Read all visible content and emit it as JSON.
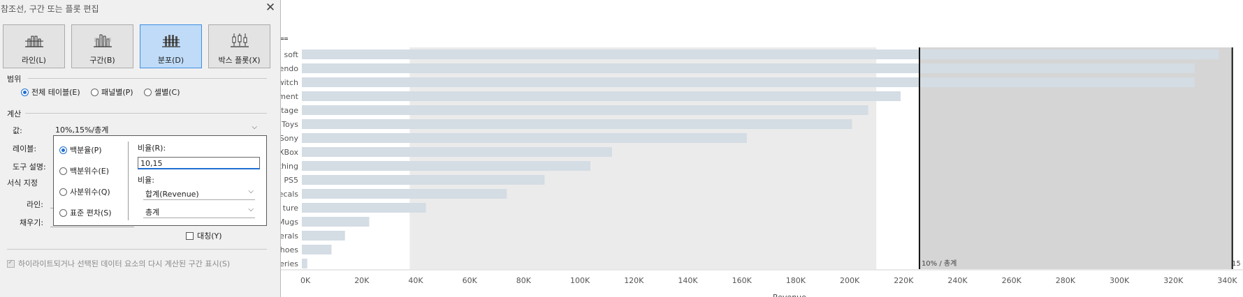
{
  "colors": {
    "bar": "#d4dce4",
    "band_light": "#ebebeb",
    "band_dark": "#d5d5d5",
    "dialog_bg": "#f0f0f0",
    "accent": "#1f6fd1"
  },
  "dialog": {
    "title": "참조선, 구간 또는 플롯 편집",
    "type_buttons": [
      {
        "label": "라인(L)",
        "icon": "reference-line-icon"
      },
      {
        "label": "구간(B)",
        "icon": "reference-band-icon"
      },
      {
        "label": "분포(D)",
        "icon": "distribution-icon",
        "selected": true
      },
      {
        "label": "박스 플롯(X)",
        "icon": "box-plot-icon"
      }
    ],
    "scope": {
      "label": "범위",
      "options": [
        {
          "label": "전체 테이블(E)",
          "selected": true
        },
        {
          "label": "패널별(P)",
          "selected": false
        },
        {
          "label": "셀별(C)",
          "selected": false
        }
      ]
    },
    "calc": {
      "label": "계산",
      "value_label": "값:",
      "value": "10%,15%/총계",
      "label_label": "레이블:",
      "tooltip_label": "도구 설명:"
    },
    "format": {
      "label": "서식 지정",
      "line_label": "라인:",
      "fill_label": "채우기:",
      "symmetric": "대칭(Y)"
    },
    "popup": {
      "options": [
        {
          "label": "백분율(P)",
          "selected": true
        },
        {
          "label": "백분위수(E)",
          "selected": false
        },
        {
          "label": "사분위수(Q)",
          "selected": false
        },
        {
          "label": "표준 편차(S)",
          "selected": false
        }
      ],
      "percent_label": "비율(R):",
      "percent_value": "10,15",
      "ratio_label": "비율:",
      "ratio_select": "합계(Revenue)",
      "total_select": "총계"
    },
    "recalc_checkbox": "하이라이트되거나 선택된 데이터 요소의 다시 계산된 구간 표시(S)"
  },
  "chart_data": {
    "type": "bar",
    "orientation": "horizontal",
    "categories": [
      "soft",
      "endo",
      "witch",
      "ment",
      "tage",
      "Toys",
      "Sony",
      "XBox",
      "thing",
      "PS5",
      "ecals",
      "ture",
      "Mugs",
      "erals",
      "hoes",
      "eries"
    ],
    "values": [
      340000,
      331000,
      331000,
      222000,
      210000,
      204000,
      165000,
      115000,
      107000,
      90000,
      76000,
      46000,
      25000,
      16000,
      11000,
      2000
    ],
    "x_ticks": [
      "0K",
      "20K",
      "40K",
      "60K",
      "80K",
      "100K",
      "120K",
      "140K",
      "160K",
      "180K",
      "200K",
      "220K",
      "240K",
      "260K",
      "280K",
      "300K",
      "320K",
      "340K"
    ],
    "xlim": [
      0,
      345000
    ],
    "band_light": [
      40000,
      213000
    ],
    "band_dark": [
      229000,
      345000
    ],
    "reference_lines": [
      229000,
      345000
    ],
    "reference_label": "10% / 총계",
    "right_cut_label": "15",
    "xlabel": "Revenue"
  }
}
